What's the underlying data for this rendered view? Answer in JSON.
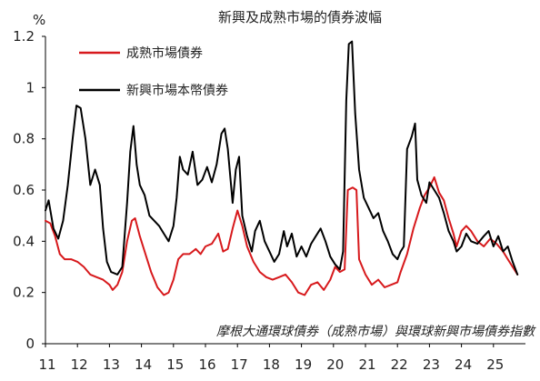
{
  "chart_data": {
    "type": "line",
    "title": "新興及成熟市場的債券波幅",
    "ylabel": "%",
    "xlabel": "",
    "ylim": [
      0,
      1.2
    ],
    "xlim": [
      2011,
      2026
    ],
    "yticks": [
      {
        "value": 0,
        "label": "0"
      },
      {
        "value": 0.2,
        "label": "0.2"
      },
      {
        "value": 0.4,
        "label": "0.4"
      },
      {
        "value": 0.6,
        "label": "0.6"
      },
      {
        "value": 0.8,
        "label": "0.8"
      },
      {
        "value": 1,
        "label": "1"
      },
      {
        "value": 1.2,
        "label": "1.2"
      }
    ],
    "xticks": [
      {
        "value": 2011,
        "label": "11"
      },
      {
        "value": 2012,
        "label": "12"
      },
      {
        "value": 2013,
        "label": "13"
      },
      {
        "value": 2014,
        "label": "14"
      },
      {
        "value": 2015,
        "label": "15"
      },
      {
        "value": 2016,
        "label": "16"
      },
      {
        "value": 2017,
        "label": "17"
      },
      {
        "value": 2018,
        "label": "18"
      },
      {
        "value": 2019,
        "label": "19"
      },
      {
        "value": 2020,
        "label": "20"
      },
      {
        "value": 2021,
        "label": "21"
      },
      {
        "value": 2022,
        "label": "22"
      },
      {
        "value": 2023,
        "label": "23"
      },
      {
        "value": 2024,
        "label": "24"
      },
      {
        "value": 2025,
        "label": "25"
      }
    ],
    "grid": false,
    "legend_position": "top-left",
    "annotation": "摩根大通環球債券（成熟市場）與環球新興市場債券指數",
    "series": [
      {
        "name": "成熟市場債券",
        "color": "#d7191c",
        "points": [
          [
            2011.0,
            0.48
          ],
          [
            2011.15,
            0.47
          ],
          [
            2011.3,
            0.42
          ],
          [
            2011.45,
            0.35
          ],
          [
            2011.6,
            0.33
          ],
          [
            2011.8,
            0.33
          ],
          [
            2012.0,
            0.32
          ],
          [
            2012.2,
            0.3
          ],
          [
            2012.4,
            0.27
          ],
          [
            2012.6,
            0.26
          ],
          [
            2012.8,
            0.25
          ],
          [
            2013.0,
            0.23
          ],
          [
            2013.1,
            0.21
          ],
          [
            2013.25,
            0.23
          ],
          [
            2013.4,
            0.28
          ],
          [
            2013.55,
            0.4
          ],
          [
            2013.7,
            0.48
          ],
          [
            2013.8,
            0.49
          ],
          [
            2013.95,
            0.42
          ],
          [
            2014.1,
            0.36
          ],
          [
            2014.3,
            0.28
          ],
          [
            2014.5,
            0.22
          ],
          [
            2014.7,
            0.19
          ],
          [
            2014.85,
            0.2
          ],
          [
            2015.0,
            0.25
          ],
          [
            2015.15,
            0.33
          ],
          [
            2015.3,
            0.35
          ],
          [
            2015.5,
            0.35
          ],
          [
            2015.7,
            0.37
          ],
          [
            2015.85,
            0.35
          ],
          [
            2016.0,
            0.38
          ],
          [
            2016.2,
            0.39
          ],
          [
            2016.4,
            0.43
          ],
          [
            2016.55,
            0.36
          ],
          [
            2016.7,
            0.37
          ],
          [
            2016.85,
            0.45
          ],
          [
            2017.0,
            0.52
          ],
          [
            2017.15,
            0.46
          ],
          [
            2017.3,
            0.38
          ],
          [
            2017.5,
            0.32
          ],
          [
            2017.7,
            0.28
          ],
          [
            2017.9,
            0.26
          ],
          [
            2018.1,
            0.25
          ],
          [
            2018.3,
            0.26
          ],
          [
            2018.5,
            0.27
          ],
          [
            2018.7,
            0.24
          ],
          [
            2018.9,
            0.2
          ],
          [
            2019.1,
            0.19
          ],
          [
            2019.3,
            0.23
          ],
          [
            2019.5,
            0.24
          ],
          [
            2019.7,
            0.21
          ],
          [
            2019.9,
            0.25
          ],
          [
            2020.05,
            0.3
          ],
          [
            2020.2,
            0.28
          ],
          [
            2020.35,
            0.29
          ],
          [
            2020.45,
            0.6
          ],
          [
            2020.6,
            0.61
          ],
          [
            2020.72,
            0.6
          ],
          [
            2020.8,
            0.33
          ],
          [
            2021.0,
            0.27
          ],
          [
            2021.2,
            0.23
          ],
          [
            2021.4,
            0.25
          ],
          [
            2021.6,
            0.22
          ],
          [
            2021.8,
            0.23
          ],
          [
            2022.0,
            0.24
          ],
          [
            2022.1,
            0.28
          ],
          [
            2022.3,
            0.35
          ],
          [
            2022.5,
            0.45
          ],
          [
            2022.7,
            0.53
          ],
          [
            2022.85,
            0.58
          ],
          [
            2023.0,
            0.61
          ],
          [
            2023.15,
            0.65
          ],
          [
            2023.3,
            0.59
          ],
          [
            2023.45,
            0.56
          ],
          [
            2023.6,
            0.49
          ],
          [
            2023.75,
            0.43
          ],
          [
            2023.85,
            0.38
          ],
          [
            2024.0,
            0.44
          ],
          [
            2024.15,
            0.46
          ],
          [
            2024.3,
            0.44
          ],
          [
            2024.5,
            0.4
          ],
          [
            2024.7,
            0.38
          ],
          [
            2024.9,
            0.41
          ],
          [
            2025.1,
            0.39
          ],
          [
            2025.3,
            0.36
          ],
          [
            2025.45,
            0.33
          ],
          [
            2025.6,
            0.3
          ],
          [
            2025.75,
            0.27
          ]
        ]
      },
      {
        "name": "新興市場本幣債券",
        "color": "#000000",
        "points": [
          [
            2011.0,
            0.52
          ],
          [
            2011.1,
            0.56
          ],
          [
            2011.25,
            0.45
          ],
          [
            2011.4,
            0.41
          ],
          [
            2011.55,
            0.48
          ],
          [
            2011.7,
            0.62
          ],
          [
            2011.85,
            0.8
          ],
          [
            2011.97,
            0.93
          ],
          [
            2012.1,
            0.92
          ],
          [
            2012.25,
            0.8
          ],
          [
            2012.4,
            0.62
          ],
          [
            2012.55,
            0.68
          ],
          [
            2012.7,
            0.62
          ],
          [
            2012.8,
            0.45
          ],
          [
            2012.92,
            0.32
          ],
          [
            2013.05,
            0.28
          ],
          [
            2013.25,
            0.27
          ],
          [
            2013.4,
            0.3
          ],
          [
            2013.55,
            0.55
          ],
          [
            2013.65,
            0.75
          ],
          [
            2013.75,
            0.85
          ],
          [
            2013.85,
            0.7
          ],
          [
            2013.95,
            0.62
          ],
          [
            2014.1,
            0.58
          ],
          [
            2014.25,
            0.5
          ],
          [
            2014.4,
            0.48
          ],
          [
            2014.55,
            0.46
          ],
          [
            2014.7,
            0.43
          ],
          [
            2014.85,
            0.4
          ],
          [
            2015.0,
            0.46
          ],
          [
            2015.1,
            0.57
          ],
          [
            2015.2,
            0.73
          ],
          [
            2015.3,
            0.68
          ],
          [
            2015.45,
            0.66
          ],
          [
            2015.6,
            0.75
          ],
          [
            2015.75,
            0.62
          ],
          [
            2015.9,
            0.64
          ],
          [
            2016.05,
            0.69
          ],
          [
            2016.2,
            0.63
          ],
          [
            2016.35,
            0.7
          ],
          [
            2016.5,
            0.82
          ],
          [
            2016.6,
            0.84
          ],
          [
            2016.7,
            0.76
          ],
          [
            2016.85,
            0.55
          ],
          [
            2016.95,
            0.68
          ],
          [
            2017.05,
            0.73
          ],
          [
            2017.15,
            0.5
          ],
          [
            2017.3,
            0.42
          ],
          [
            2017.45,
            0.36
          ],
          [
            2017.55,
            0.44
          ],
          [
            2017.7,
            0.48
          ],
          [
            2017.85,
            0.4
          ],
          [
            2018.0,
            0.36
          ],
          [
            2018.15,
            0.32
          ],
          [
            2018.3,
            0.35
          ],
          [
            2018.45,
            0.44
          ],
          [
            2018.55,
            0.38
          ],
          [
            2018.7,
            0.43
          ],
          [
            2018.85,
            0.34
          ],
          [
            2019.0,
            0.38
          ],
          [
            2019.15,
            0.34
          ],
          [
            2019.3,
            0.39
          ],
          [
            2019.45,
            0.42
          ],
          [
            2019.6,
            0.45
          ],
          [
            2019.75,
            0.4
          ],
          [
            2019.9,
            0.34
          ],
          [
            2020.05,
            0.31
          ],
          [
            2020.2,
            0.29
          ],
          [
            2020.3,
            0.36
          ],
          [
            2020.4,
            0.95
          ],
          [
            2020.48,
            1.17
          ],
          [
            2020.58,
            1.18
          ],
          [
            2020.68,
            0.9
          ],
          [
            2020.8,
            0.68
          ],
          [
            2020.95,
            0.57
          ],
          [
            2021.1,
            0.53
          ],
          [
            2021.25,
            0.49
          ],
          [
            2021.4,
            0.51
          ],
          [
            2021.55,
            0.44
          ],
          [
            2021.7,
            0.4
          ],
          [
            2021.85,
            0.35
          ],
          [
            2022.0,
            0.33
          ],
          [
            2022.1,
            0.36
          ],
          [
            2022.2,
            0.38
          ],
          [
            2022.3,
            0.76
          ],
          [
            2022.45,
            0.81
          ],
          [
            2022.55,
            0.86
          ],
          [
            2022.62,
            0.64
          ],
          [
            2022.75,
            0.58
          ],
          [
            2022.9,
            0.55
          ],
          [
            2023.0,
            0.63
          ],
          [
            2023.15,
            0.6
          ],
          [
            2023.3,
            0.57
          ],
          [
            2023.45,
            0.51
          ],
          [
            2023.6,
            0.44
          ],
          [
            2023.75,
            0.4
          ],
          [
            2023.85,
            0.36
          ],
          [
            2024.0,
            0.38
          ],
          [
            2024.15,
            0.43
          ],
          [
            2024.3,
            0.4
          ],
          [
            2024.5,
            0.39
          ],
          [
            2024.7,
            0.42
          ],
          [
            2024.85,
            0.44
          ],
          [
            2025.0,
            0.38
          ],
          [
            2025.15,
            0.42
          ],
          [
            2025.3,
            0.36
          ],
          [
            2025.45,
            0.38
          ],
          [
            2025.6,
            0.32
          ],
          [
            2025.75,
            0.27
          ]
        ]
      }
    ]
  }
}
